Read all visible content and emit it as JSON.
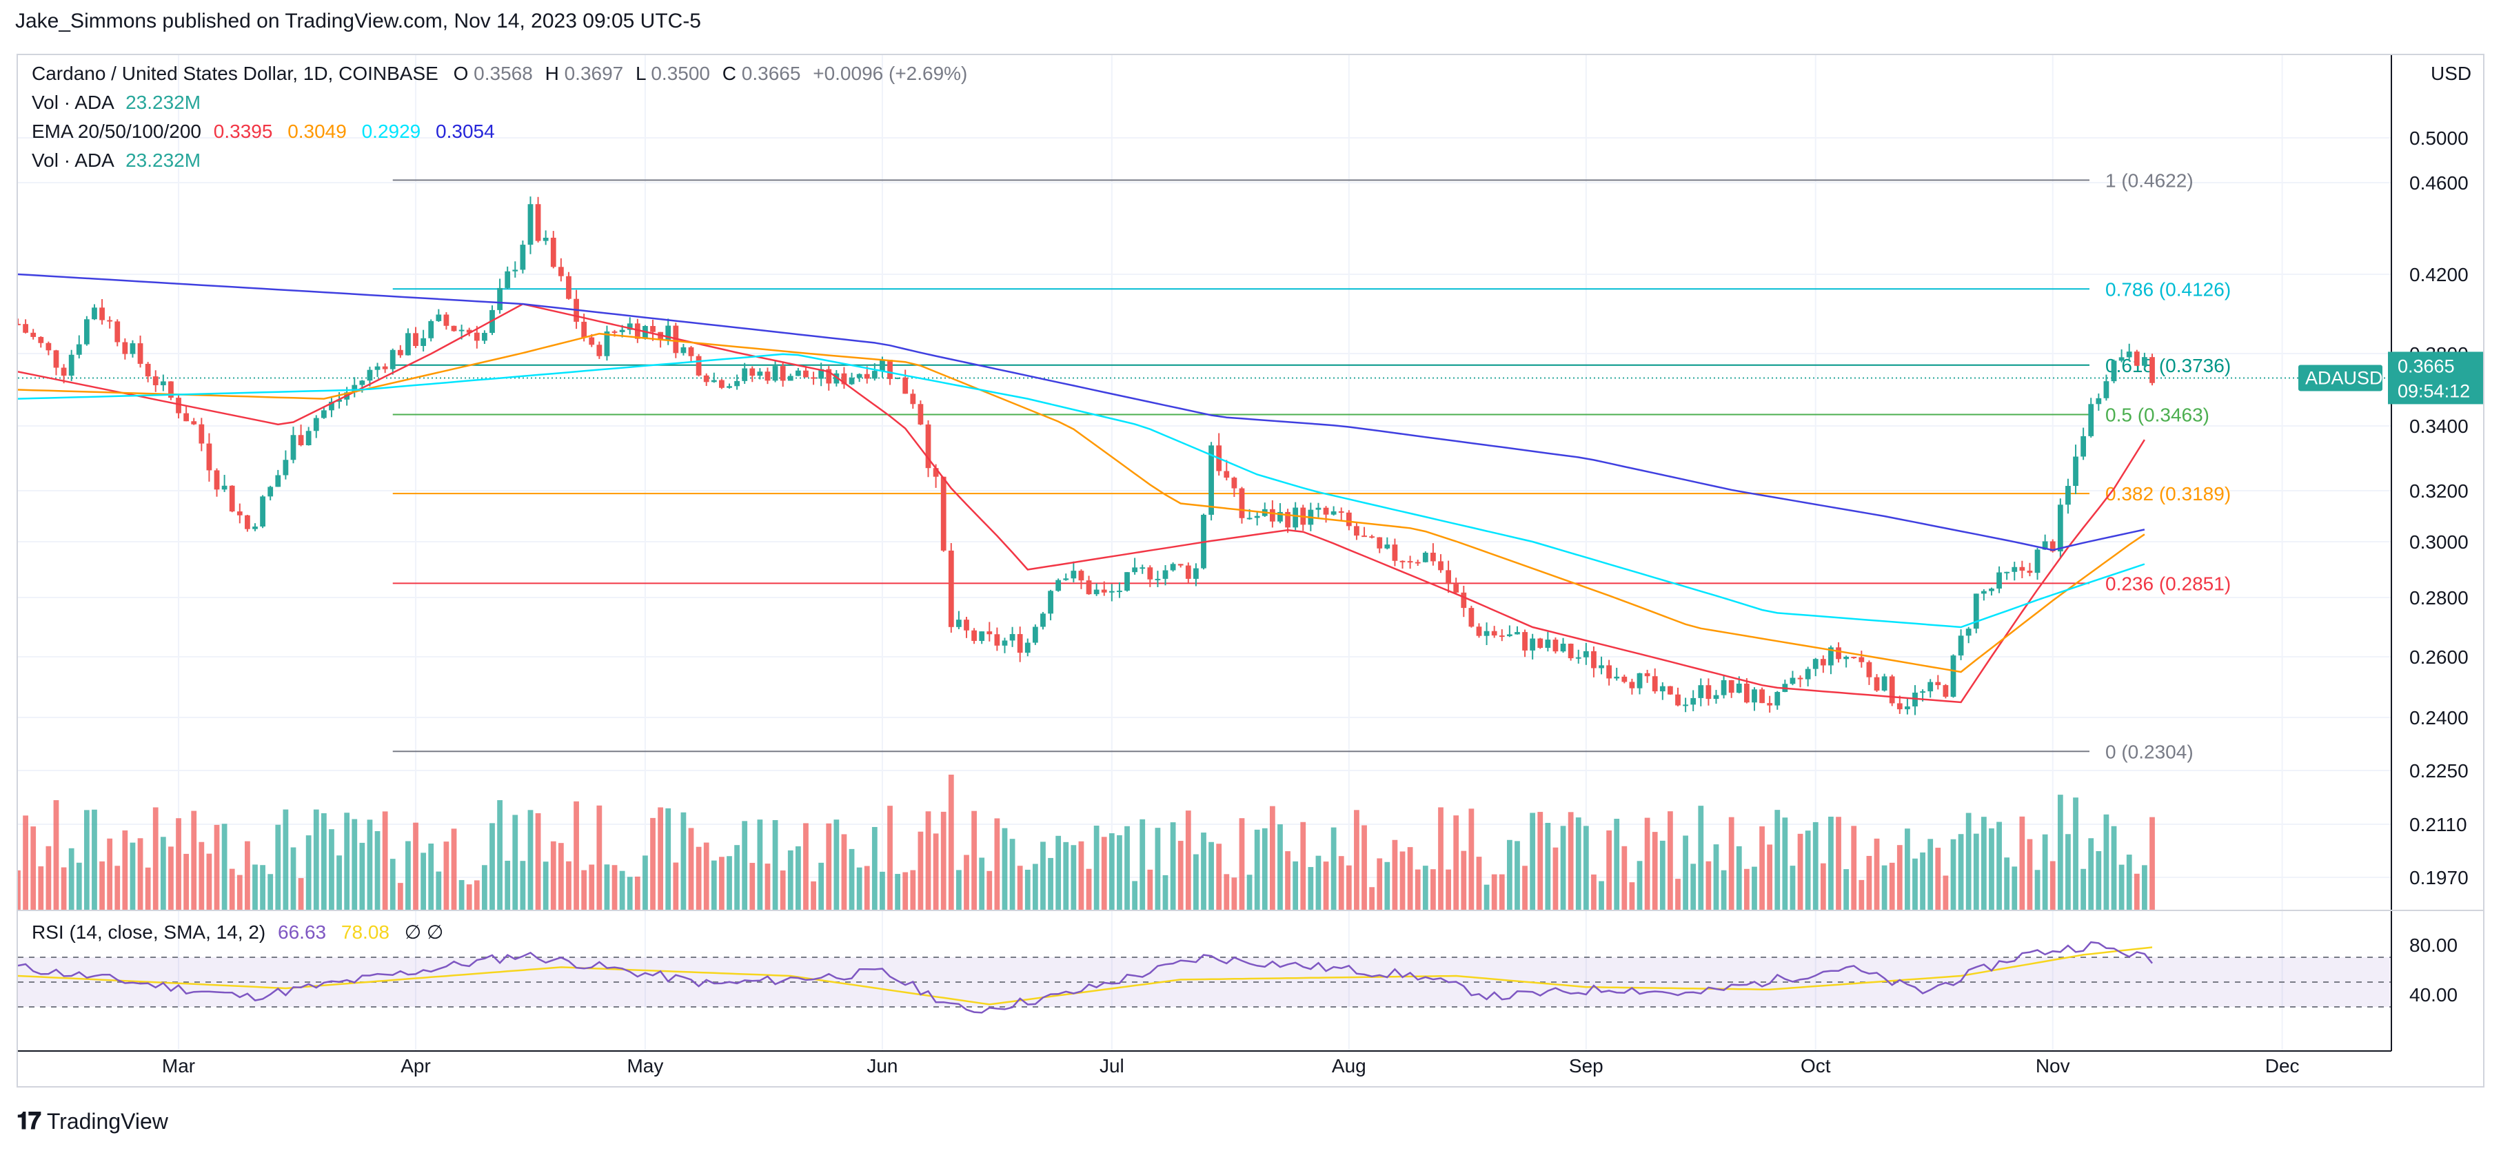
{
  "header": {
    "credit": "Jake_Simmons published on TradingView.com, Nov 14, 2023 09:05 UTC-5"
  },
  "footer": {
    "brand": "TradingView",
    "brand_icon": "tradingview-logo-icon"
  },
  "legend": {
    "symbol": "Cardano / United States Dollar, 1D, COINBASE",
    "ohlc": {
      "o_label": "O",
      "o": "0.3568",
      "h_label": "H",
      "h": "0.3697",
      "l_label": "L",
      "l": "0.3500",
      "c_label": "C",
      "c": "0.3665",
      "change": "+0.0096 (+2.69%)"
    },
    "vol1_label": "Vol · ADA",
    "vol1_value": "23.232M",
    "ema_label": "EMA 20/50/100/200",
    "ema_values": [
      "0.3395",
      "0.3049",
      "0.2929",
      "0.3054"
    ],
    "vol2_label": "Vol · ADA",
    "vol2_value": "23.232M",
    "rsi_label": "RSI (14, close, SMA, 14, 2)",
    "rsi_value": "66.63",
    "rsi_sma_value": "78.08",
    "rsi_extra": "∅  ∅"
  },
  "price_axis": {
    "currency": "USD",
    "ticks": [
      "0.5000",
      "0.4600",
      "0.4200",
      "0.3800",
      "0.3400",
      "0.3200",
      "0.3000",
      "0.2800",
      "0.2600",
      "0.2400",
      "0.2250",
      "0.2110",
      "0.1970"
    ],
    "current_symbol": "ADAUSD",
    "current_price": "0.3665",
    "countdown": "09:54:12"
  },
  "rsi_axis": {
    "ticks": [
      "80.00",
      "40.00"
    ]
  },
  "time_axis": {
    "ticks": [
      "Mar",
      "Apr",
      "May",
      "Jun",
      "Jul",
      "Aug",
      "Sep",
      "Oct",
      "Nov",
      "Dec"
    ]
  },
  "colors": {
    "up": "#26a69a",
    "down": "#ef5350",
    "ema20": "#f23645",
    "ema50": "#ff9800",
    "ema100": "#00e5ff",
    "ema200": "#3f3fe0",
    "fib_1": "#787b86",
    "fib_0786": "#00bcd4",
    "fib_0618": "#009688",
    "fib_05": "#4caf50",
    "fib_0382": "#ff9800",
    "fib_0236": "#f23645",
    "fib_0": "#787b86",
    "rsi": "#7e57c2",
    "rsi_sma": "#f7d51d"
  },
  "chart_data": {
    "type": "candlestick",
    "symbol": "ADAUSD",
    "x_range": [
      "2023-02-08",
      "2023-12-15"
    ],
    "y_scale": "log",
    "fib_levels": [
      {
        "label": "1 (0.4622)",
        "value": 0.4622
      },
      {
        "label": "0.786 (0.4126)",
        "value": 0.4126
      },
      {
        "label": "0.618 (0.3736)",
        "value": 0.3736
      },
      {
        "label": "0.5 (0.3463)",
        "value": 0.3463
      },
      {
        "label": "0.382 (0.3189)",
        "value": 0.3189
      },
      {
        "label": "0.236 (0.2851)",
        "value": 0.2851
      },
      {
        "label": "0 (0.2304)",
        "value": 0.2304
      }
    ],
    "fib_start": "2023-03-29",
    "close_path": [
      [
        "2023-02-08",
        0.395
      ],
      [
        "2023-02-14",
        0.372
      ],
      [
        "2023-02-18",
        0.405
      ],
      [
        "2023-02-24",
        0.375
      ],
      [
        "2023-03-02",
        0.345
      ],
      [
        "2023-03-10",
        0.305
      ],
      [
        "2023-03-16",
        0.335
      ],
      [
        "2023-03-22",
        0.355
      ],
      [
        "2023-03-29",
        0.38
      ],
      [
        "2023-04-04",
        0.395
      ],
      [
        "2023-04-10",
        0.39
      ],
      [
        "2023-04-16",
        0.445
      ],
      [
        "2023-04-20",
        0.415
      ],
      [
        "2023-04-24",
        0.38
      ],
      [
        "2023-04-28",
        0.395
      ],
      [
        "2023-05-04",
        0.39
      ],
      [
        "2023-05-10",
        0.365
      ],
      [
        "2023-05-18",
        0.37
      ],
      [
        "2023-05-26",
        0.365
      ],
      [
        "2023-06-01",
        0.375
      ],
      [
        "2023-06-05",
        0.355
      ],
      [
        "2023-06-08",
        0.32
      ],
      [
        "2023-06-10",
        0.27
      ],
      [
        "2023-06-14",
        0.265
      ],
      [
        "2023-06-20",
        0.265
      ],
      [
        "2023-06-24",
        0.29
      ],
      [
        "2023-06-30",
        0.28
      ],
      [
        "2023-07-06",
        0.29
      ],
      [
        "2023-07-12",
        0.29
      ],
      [
        "2023-07-14",
        0.335
      ],
      [
        "2023-07-18",
        0.31
      ],
      [
        "2023-07-24",
        0.31
      ],
      [
        "2023-07-30",
        0.31
      ],
      [
        "2023-08-05",
        0.295
      ],
      [
        "2023-08-12",
        0.295
      ],
      [
        "2023-08-17",
        0.27
      ],
      [
        "2023-08-24",
        0.265
      ],
      [
        "2023-08-31",
        0.26
      ],
      [
        "2023-09-06",
        0.255
      ],
      [
        "2023-09-12",
        0.245
      ],
      [
        "2023-09-18",
        0.25
      ],
      [
        "2023-09-26",
        0.245
      ],
      [
        "2023-10-02",
        0.26
      ],
      [
        "2023-10-06",
        0.26
      ],
      [
        "2023-10-12",
        0.245
      ],
      [
        "2023-10-18",
        0.25
      ],
      [
        "2023-10-22",
        0.28
      ],
      [
        "2023-10-28",
        0.29
      ],
      [
        "2023-11-01",
        0.3
      ],
      [
        "2023-11-04",
        0.33
      ],
      [
        "2023-11-08",
        0.37
      ],
      [
        "2023-11-11",
        0.385
      ],
      [
        "2023-11-14",
        0.3665
      ]
    ],
    "ema_series": [
      {
        "name": "EMA 20",
        "value": 0.3395,
        "points": [
          [
            "2023-02-08",
            0.37
          ],
          [
            "2023-03-15",
            0.34
          ],
          [
            "2023-04-15",
            0.405
          ],
          [
            "2023-05-25",
            0.37
          ],
          [
            "2023-06-20",
            0.29
          ],
          [
            "2023-07-25",
            0.305
          ],
          [
            "2023-08-25",
            0.27
          ],
          [
            "2023-09-25",
            0.25
          ],
          [
            "2023-10-20",
            0.245
          ],
          [
            "2023-11-14",
            0.3395
          ]
        ]
      },
      {
        "name": "EMA 50",
        "value": 0.3049,
        "points": [
          [
            "2023-02-08",
            0.36
          ],
          [
            "2023-03-20",
            0.355
          ],
          [
            "2023-04-25",
            0.39
          ],
          [
            "2023-06-05",
            0.375
          ],
          [
            "2023-07-10",
            0.315
          ],
          [
            "2023-08-10",
            0.305
          ],
          [
            "2023-09-15",
            0.27
          ],
          [
            "2023-10-20",
            0.255
          ],
          [
            "2023-11-14",
            0.3049
          ]
        ]
      },
      {
        "name": "EMA 100",
        "value": 0.2929,
        "points": [
          [
            "2023-02-08",
            0.355
          ],
          [
            "2023-03-25",
            0.36
          ],
          [
            "2023-05-20",
            0.38
          ],
          [
            "2023-06-20",
            0.355
          ],
          [
            "2023-07-20",
            0.325
          ],
          [
            "2023-08-25",
            0.3
          ],
          [
            "2023-09-25",
            0.275
          ],
          [
            "2023-10-20",
            0.27
          ],
          [
            "2023-11-14",
            0.2929
          ]
        ]
      },
      {
        "name": "EMA 200",
        "value": 0.3054,
        "points": [
          [
            "2023-02-08",
            0.42
          ],
          [
            "2023-04-15",
            0.405
          ],
          [
            "2023-06-01",
            0.385
          ],
          [
            "2023-07-15",
            0.345
          ],
          [
            "2023-09-01",
            0.33
          ],
          [
            "2023-10-10",
            0.31
          ],
          [
            "2023-11-01",
            0.297
          ],
          [
            "2023-11-14",
            0.3054
          ]
        ]
      }
    ],
    "rsi_path": [
      [
        "2023-02-08",
        62
      ],
      [
        "2023-03-10",
        38
      ],
      [
        "2023-04-15",
        72
      ],
      [
        "2023-05-10",
        48
      ],
      [
        "2023-06-01",
        58
      ],
      [
        "2023-06-12",
        26
      ],
      [
        "2023-06-25",
        40
      ],
      [
        "2023-07-13",
        70
      ],
      [
        "2023-08-10",
        55
      ],
      [
        "2023-08-20",
        38
      ],
      [
        "2023-09-05",
        45
      ],
      [
        "2023-09-15",
        40
      ],
      [
        "2023-10-05",
        62
      ],
      [
        "2023-10-15",
        42
      ],
      [
        "2023-10-28",
        72
      ],
      [
        "2023-11-06",
        80
      ],
      [
        "2023-11-12",
        72
      ],
      [
        "2023-11-14",
        66.63
      ]
    ],
    "rsi_sma_path": [
      [
        "2023-02-08",
        55
      ],
      [
        "2023-03-15",
        45
      ],
      [
        "2023-04-20",
        62
      ],
      [
        "2023-05-20",
        55
      ],
      [
        "2023-06-15",
        32
      ],
      [
        "2023-07-10",
        52
      ],
      [
        "2023-08-15",
        55
      ],
      [
        "2023-09-01",
        46
      ],
      [
        "2023-09-25",
        44
      ],
      [
        "2023-10-20",
        55
      ],
      [
        "2023-11-05",
        72
      ],
      [
        "2023-11-14",
        78.08
      ]
    ],
    "rsi_bands": [
      70,
      50,
      30
    ]
  }
}
